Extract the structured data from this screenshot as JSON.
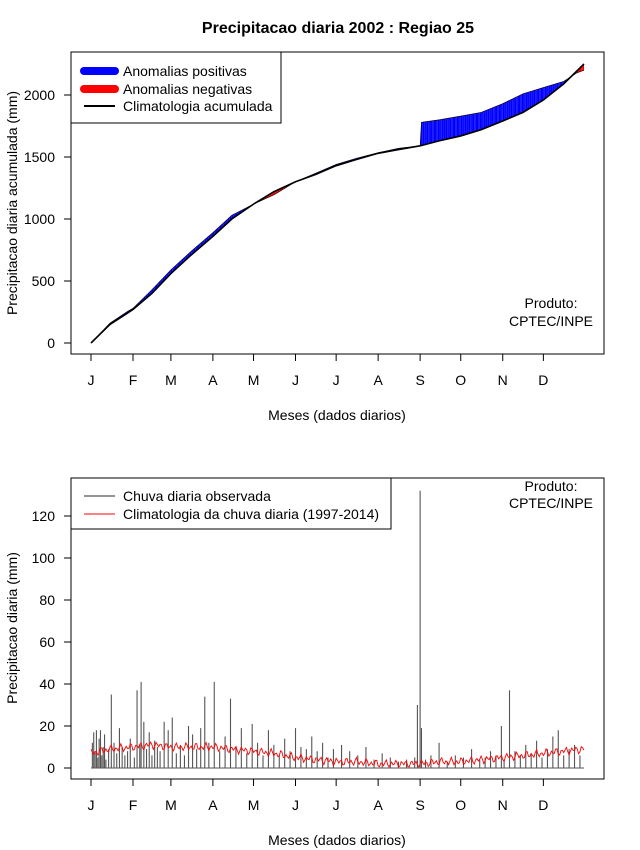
{
  "figure_title": "Precipitacao diaria 2002 : Regiao 25",
  "colors": {
    "positive": "#0000ff",
    "negative": "#ff0000",
    "climatology_line": "#000000",
    "observed_bars": "#555555",
    "climatology_daily": "#ff0000"
  },
  "chart_data": [
    {
      "type": "area",
      "title": "Precipitacao diaria 2002 : Regiao 25",
      "xlabel": "Meses (dados diarios)",
      "ylabel": "Precipitacao diaria acumulada (mm)",
      "month_labels": [
        "J",
        "F",
        "M",
        "A",
        "M",
        "J",
        "J",
        "A",
        "S",
        "O",
        "N",
        "D"
      ],
      "month_start_days": [
        1,
        32,
        60,
        91,
        121,
        152,
        182,
        213,
        244,
        274,
        305,
        335
      ],
      "xlim": [
        1,
        365
      ],
      "ylim": [
        0,
        2250
      ],
      "yticks": [
        0,
        500,
        1000,
        1500,
        2000
      ],
      "legend_position": "top-left",
      "legend": [
        "Anomalias positivas",
        "Anomalias negativas",
        "Climatologia acumulada"
      ],
      "annotation": [
        "Produto:",
        "CPTEC/INPE"
      ],
      "grid": false,
      "series": [
        {
          "name": "Climatologia acumulada",
          "x": [
            1,
            15,
            32,
            46,
            60,
            75,
            91,
            105,
            121,
            136,
            152,
            167,
            182,
            197,
            213,
            228,
            244,
            258,
            274,
            289,
            305,
            320,
            335,
            350,
            365
          ],
          "values": [
            0,
            150,
            270,
            400,
            560,
            710,
            860,
            1000,
            1120,
            1220,
            1300,
            1360,
            1430,
            1480,
            1530,
            1560,
            1590,
            1630,
            1670,
            1720,
            1790,
            1860,
            1960,
            2090,
            2250
          ]
        },
        {
          "name": "Observada acumulada",
          "x": [
            1,
            15,
            28,
            32,
            46,
            60,
            75,
            91,
            105,
            121,
            136,
            143,
            152,
            167,
            182,
            197,
            213,
            228,
            244,
            245,
            258,
            274,
            289,
            305,
            320,
            335,
            350,
            360,
            365
          ],
          "values": [
            0,
            160,
            255,
            280,
            430,
            590,
            740,
            890,
            1030,
            1120,
            1195,
            1240,
            1300,
            1370,
            1440,
            1490,
            1535,
            1570,
            1590,
            1780,
            1800,
            1830,
            1860,
            1930,
            2010,
            2060,
            2110,
            2180,
            2200
          ]
        }
      ]
    },
    {
      "type": "bar",
      "xlabel": "Meses (dados diarios)",
      "ylabel": "Precipitacao diaria (mm)",
      "month_labels": [
        "J",
        "F",
        "M",
        "A",
        "M",
        "J",
        "J",
        "A",
        "S",
        "O",
        "N",
        "D"
      ],
      "month_start_days": [
        1,
        32,
        60,
        91,
        121,
        152,
        182,
        213,
        244,
        274,
        305,
        335
      ],
      "xlim": [
        1,
        365
      ],
      "ylim": [
        0,
        130
      ],
      "yticks": [
        0,
        20,
        40,
        60,
        80,
        100,
        120
      ],
      "legend_position": "top-left",
      "legend": [
        "Chuva diaria observada",
        "Climatologia da chuva diaria (1997-2014)"
      ],
      "annotation": [
        "Produto:",
        "CPTEC/INPE"
      ],
      "grid": false,
      "series": [
        {
          "name": "Chuva diaria observada",
          "days": [
            2,
            3,
            4,
            5,
            6,
            7,
            8,
            9,
            10,
            11,
            12,
            14,
            16,
            18,
            20,
            22,
            24,
            26,
            28,
            30,
            33,
            35,
            37,
            38,
            40,
            42,
            44,
            46,
            48,
            50,
            52,
            55,
            58,
            61,
            64,
            67,
            70,
            73,
            76,
            79,
            82,
            85,
            88,
            92,
            96,
            100,
            104,
            108,
            112,
            116,
            120,
            124,
            128,
            132,
            136,
            140,
            144,
            148,
            152,
            156,
            160,
            164,
            168,
            172,
            176,
            180,
            186,
            192,
            198,
            204,
            210,
            216,
            222,
            228,
            234,
            240,
            242,
            244,
            245,
            248,
            252,
            258,
            264,
            270,
            276,
            282,
            288,
            292,
            296,
            300,
            304,
            306,
            310,
            314,
            318,
            322,
            326,
            330,
            334,
            338,
            342,
            346,
            350,
            354,
            358,
            362
          ],
          "values": [
            12,
            17,
            8,
            18,
            5,
            14,
            18,
            6,
            10,
            16,
            4,
            9,
            35,
            12,
            7,
            19,
            10,
            6,
            8,
            14,
            5,
            37,
            11,
            41,
            22,
            9,
            17,
            6,
            13,
            10,
            8,
            22,
            18,
            24,
            7,
            11,
            6,
            20,
            16,
            9,
            19,
            34,
            12,
            41,
            8,
            15,
            33,
            10,
            19,
            7,
            21,
            12,
            6,
            18,
            11,
            6,
            14,
            8,
            19,
            10,
            9,
            15,
            8,
            12,
            5,
            9,
            11,
            8,
            6,
            10,
            4,
            7,
            5,
            3,
            4,
            5,
            30,
            132,
            19,
            4,
            6,
            12,
            3,
            6,
            5,
            9,
            4,
            5,
            8,
            6,
            20,
            4,
            37,
            8,
            6,
            11,
            7,
            13,
            5,
            9,
            15,
            18,
            6,
            9,
            11,
            6
          ]
        },
        {
          "name": "Climatologia da chuva diaria (1997-2014)",
          "days": [
            1,
            15,
            32,
            46,
            60,
            75,
            91,
            105,
            121,
            136,
            152,
            167,
            182,
            197,
            213,
            228,
            244,
            258,
            274,
            289,
            305,
            320,
            335,
            350,
            365
          ],
          "values": [
            7,
            9,
            10,
            11,
            10,
            10,
            10,
            9,
            8,
            7,
            5,
            4,
            3,
            3,
            2,
            2,
            2,
            3,
            3,
            4,
            5,
            6,
            7,
            8,
            9
          ]
        }
      ]
    }
  ]
}
